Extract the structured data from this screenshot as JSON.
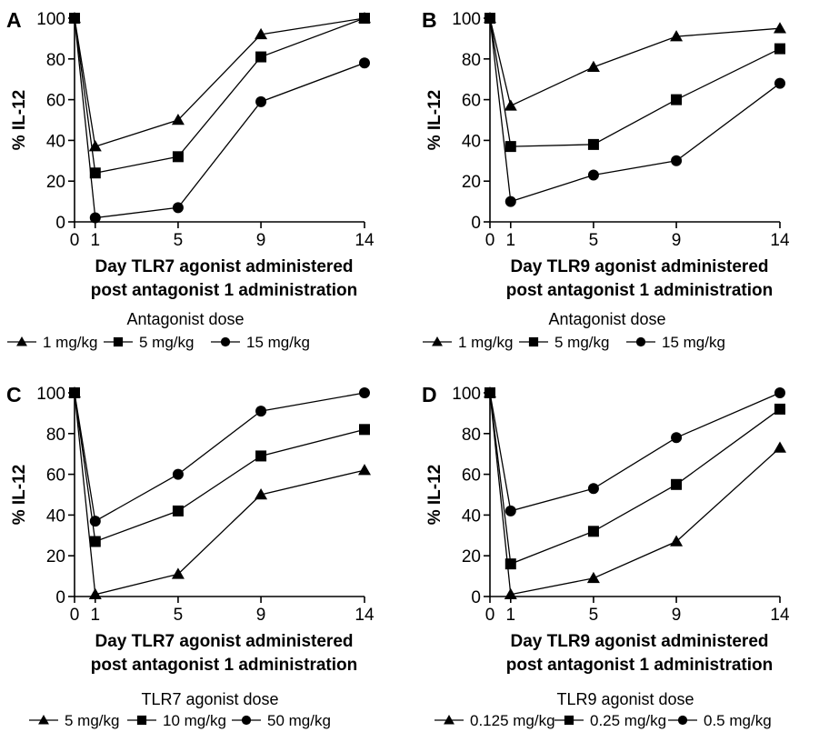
{
  "chart_data": [
    {
      "panel": "A",
      "type": "line",
      "ylabel": "% IL-12",
      "xlabel_lines": [
        "Day TLR7 agonist administered",
        "post antagonist 1 administration"
      ],
      "x": [
        0,
        1,
        5,
        9,
        14
      ],
      "xticks": [
        "0",
        "1",
        "5",
        "9",
        "14"
      ],
      "yticks": [
        "0",
        "20",
        "40",
        "60",
        "80",
        "100"
      ],
      "ylim": [
        0,
        100
      ],
      "legend_title": "Antagonist dose",
      "series": [
        {
          "name": "1 mg/kg",
          "marker": "triangle",
          "values": [
            100,
            37,
            50,
            92,
            100
          ]
        },
        {
          "name": "5 mg/kg",
          "marker": "square",
          "values": [
            100,
            24,
            32,
            81,
            100
          ]
        },
        {
          "name": "15 mg/kg",
          "marker": "circle",
          "values": [
            100,
            2,
            7,
            59,
            78
          ]
        }
      ]
    },
    {
      "panel": "B",
      "type": "line",
      "ylabel": "% IL-12",
      "xlabel_lines": [
        "Day TLR9 agonist administered",
        "post antagonist 1 administration"
      ],
      "x": [
        0,
        1,
        5,
        9,
        14
      ],
      "xticks": [
        "0",
        "1",
        "5",
        "9",
        "14"
      ],
      "yticks": [
        "0",
        "20",
        "40",
        "60",
        "80",
        "100"
      ],
      "ylim": [
        0,
        100
      ],
      "legend_title": "Antagonist dose",
      "series": [
        {
          "name": "1 mg/kg",
          "marker": "triangle",
          "values": [
            100,
            57,
            76,
            91,
            95
          ]
        },
        {
          "name": "5 mg/kg",
          "marker": "square",
          "values": [
            100,
            37,
            38,
            60,
            85
          ]
        },
        {
          "name": "15 mg/kg",
          "marker": "circle",
          "values": [
            100,
            10,
            23,
            30,
            68
          ]
        }
      ]
    },
    {
      "panel": "C",
      "type": "line",
      "ylabel": "% IL-12",
      "xlabel_lines": [
        "Day TLR7 agonist administered",
        "post antagonist 1 administration"
      ],
      "x": [
        0,
        1,
        5,
        9,
        14
      ],
      "xticks": [
        "0",
        "1",
        "5",
        "9",
        "14"
      ],
      "yticks": [
        "0",
        "20",
        "40",
        "60",
        "80",
        "100"
      ],
      "ylim": [
        0,
        100
      ],
      "legend_title": "TLR7 agonist dose",
      "series": [
        {
          "name": "5 mg/kg",
          "marker": "triangle",
          "values": [
            100,
            1,
            11,
            50,
            62
          ]
        },
        {
          "name": "10 mg/kg",
          "marker": "square",
          "values": [
            100,
            27,
            42,
            69,
            82
          ]
        },
        {
          "name": "50 mg/kg",
          "marker": "circle",
          "values": [
            100,
            37,
            60,
            91,
            100
          ]
        }
      ]
    },
    {
      "panel": "D",
      "type": "line",
      "ylabel": "% IL-12",
      "xlabel_lines": [
        "Day TLR9 agonist administered",
        "post antagonist 1 administration"
      ],
      "x": [
        0,
        1,
        5,
        9,
        14
      ],
      "xticks": [
        "0",
        "1",
        "5",
        "9",
        "14"
      ],
      "yticks": [
        "0",
        "20",
        "40",
        "60",
        "80",
        "100"
      ],
      "ylim": [
        0,
        100
      ],
      "legend_title": "TLR9 agonist dose",
      "series": [
        {
          "name": "0.125 mg/kg",
          "marker": "triangle",
          "values": [
            100,
            1,
            9,
            27,
            73
          ]
        },
        {
          "name": "0.25 mg/kg",
          "marker": "square",
          "values": [
            100,
            16,
            32,
            55,
            92
          ]
        },
        {
          "name": "0.5 mg/kg",
          "marker": "circle",
          "values": [
            100,
            42,
            53,
            78,
            100
          ]
        }
      ]
    }
  ]
}
